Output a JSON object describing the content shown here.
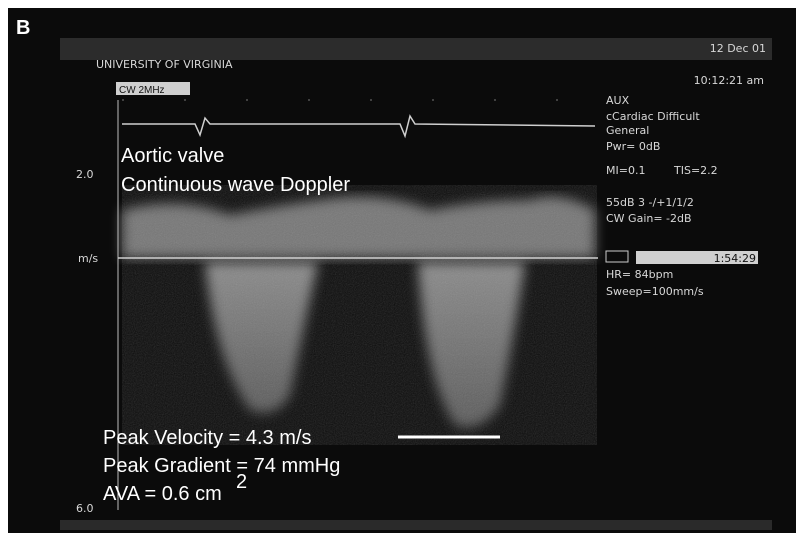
{
  "panel_label": "B",
  "header": {
    "institution": "UNIVERSITY OF VIRGINIA",
    "date": "12 Dec 01",
    "time": "10:12:21 am",
    "probe": "CW 2MHz"
  },
  "settings": [
    "AUX",
    "cCardiac Difficult",
    "General",
    "Pwr= 0dB",
    "MI=0.1",
    "TIS=2.2",
    "55dB 3 -/+1/1/2",
    "CW Gain= -2dB",
    "1:54:29",
    "HR= 84bpm",
    "Sweep=100mm/s"
  ],
  "scale": {
    "top": "2.0",
    "unit": "m/s",
    "bottom": "6.0"
  },
  "annotations": {
    "title": "Aortic valve",
    "subtitle": "Continuous wave Doppler",
    "peak_velocity": "Peak Velocity = 4.3 m/s",
    "peak_gradient": "Peak Gradient = 74 mmHg",
    "ava": "AVA = 0.6 cm",
    "ava_superscript": "2"
  }
}
